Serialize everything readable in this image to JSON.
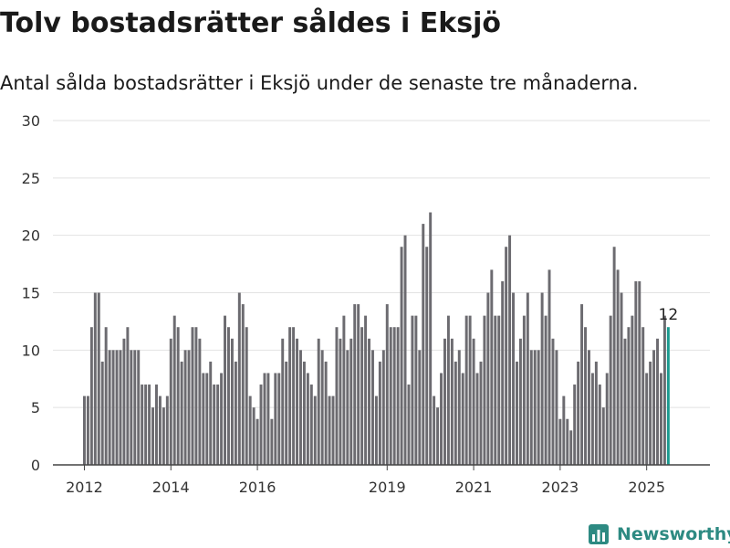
{
  "title": "Tolv bostadsrätter såldes i Eksjö",
  "subtitle": "Antal sålda bostadsrätter i Eksjö under de senaste tre månaderna.",
  "brand": {
    "name": "Newsworthy",
    "icon": "newsworthy-logo-icon",
    "color": "#2d8a82"
  },
  "colors": {
    "bar": "#6c6b70",
    "highlight": "#1b9a8f",
    "grid": "#e2e2e2",
    "axis": "#444444",
    "text": "#333333"
  },
  "chart_data": {
    "type": "bar",
    "x_start": "2012-01",
    "x_interval": "month",
    "values": [
      6,
      6,
      12,
      15,
      15,
      9,
      12,
      10,
      10,
      10,
      10,
      11,
      12,
      10,
      10,
      10,
      7,
      7,
      7,
      5,
      7,
      6,
      5,
      6,
      11,
      13,
      12,
      9,
      10,
      10,
      12,
      12,
      11,
      8,
      8,
      9,
      7,
      7,
      8,
      13,
      12,
      11,
      9,
      15,
      14,
      12,
      6,
      5,
      4,
      7,
      8,
      8,
      4,
      8,
      8,
      11,
      9,
      12,
      12,
      11,
      10,
      9,
      8,
      7,
      6,
      11,
      10,
      9,
      6,
      6,
      12,
      11,
      13,
      10,
      11,
      14,
      14,
      12,
      13,
      11,
      10,
      6,
      9,
      10,
      14,
      12,
      12,
      12,
      19,
      20,
      7,
      13,
      13,
      10,
      21,
      19,
      22,
      6,
      5,
      8,
      11,
      13,
      11,
      9,
      10,
      8,
      13,
      13,
      11,
      8,
      9,
      13,
      15,
      17,
      13,
      13,
      16,
      19,
      20,
      15,
      9,
      11,
      13,
      15,
      10,
      10,
      10,
      15,
      13,
      17,
      11,
      10,
      4,
      6,
      4,
      3,
      7,
      9,
      14,
      12,
      10,
      8,
      9,
      7,
      5,
      8,
      13,
      19,
      17,
      15,
      11,
      12,
      13,
      16,
      16,
      12,
      8,
      9,
      10,
      11,
      8,
      13,
      12
    ],
    "highlight_last": 1,
    "last_value_label": "12",
    "x_ticks": [
      "2012",
      "2014",
      "2016",
      "2019",
      "2021",
      "2023",
      "2025"
    ],
    "y_ticks": [
      "0",
      "5",
      "10",
      "15",
      "20",
      "25",
      "30"
    ],
    "ylim": [
      0,
      30
    ],
    "grid": true,
    "legend": "none"
  }
}
